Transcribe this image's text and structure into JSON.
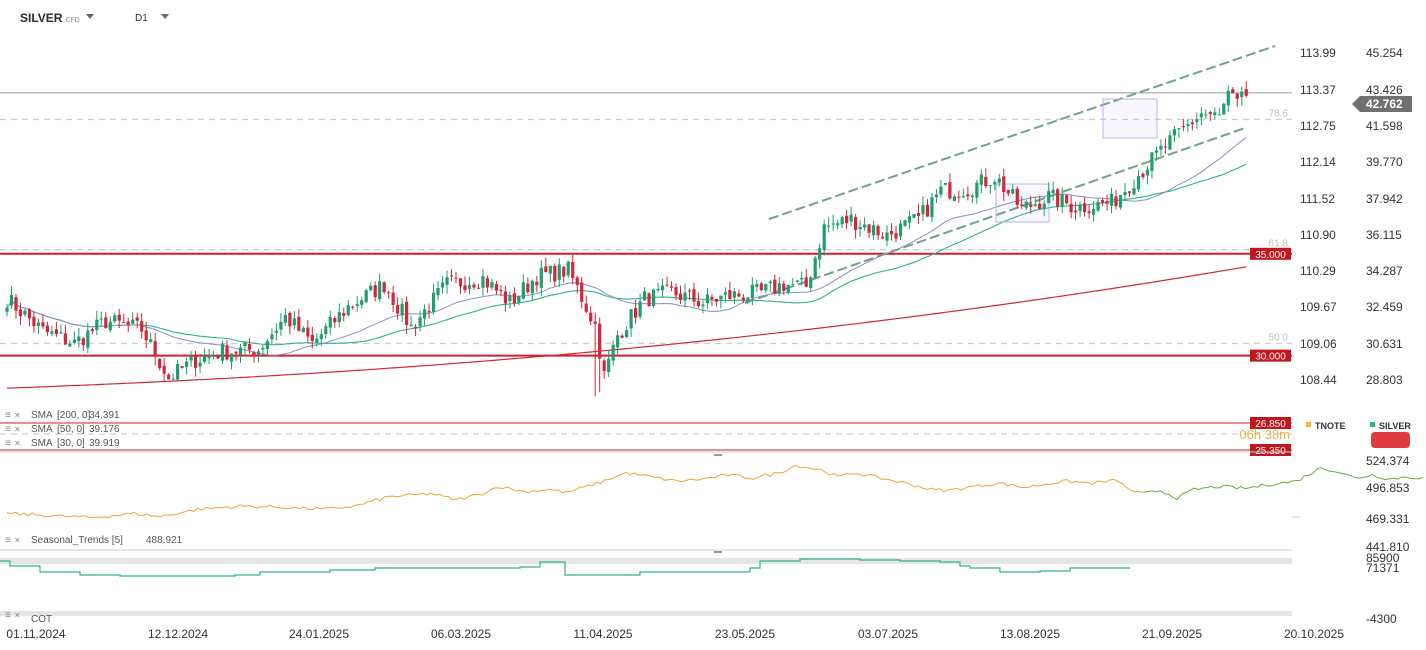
{
  "header": {
    "symbol": "SILVER",
    "symbol_type": "CFD",
    "timeframe": "D1"
  },
  "colors": {
    "up": "#1f9e6e",
    "down": "#d0283a",
    "sma200": "#d0283a",
    "sma50": "#2db58a",
    "sma30": "#8a8fc8",
    "channel": "#6fa38c",
    "level": "#d11f2f",
    "seasonal_hist": "#f2a23c",
    "seasonal_proj": "#71a73c",
    "cot": "#2db58a",
    "tnote": "#f5b82e",
    "silver": "#2db58a",
    "badge": "#e0393e"
  },
  "chart_data": {
    "type": "candlestick",
    "x_ticks": [
      "01.11.2024",
      "12.12.2024",
      "24.01.2025",
      "06.03.2025",
      "11.04.2025",
      "23.05.2025",
      "03.07.2025",
      "13.08.2025",
      "21.09.2025",
      "20.10.2025"
    ],
    "right_axis_ticks": [
      "45.254",
      "43.426",
      "41.598",
      "39.770",
      "37.942",
      "36.115",
      "34.287",
      "32.459",
      "30.631",
      "28.803"
    ],
    "left_axis_ticks": [
      "113.99",
      "113.37",
      "112.75",
      "112.14",
      "111.52",
      "110.90",
      "110.29",
      "109.67",
      "109.06",
      "108.44"
    ],
    "last_price": "42.762",
    "price_range": [
      26.0,
      46.2
    ],
    "horizontal_levels": [
      {
        "label": "35.000",
        "value": 35.0
      },
      {
        "label": "30.000",
        "value": 30.0
      },
      {
        "label": "26.850",
        "value": 26.85
      },
      {
        "label": "25.350",
        "value": 25.35
      }
    ],
    "fib_levels": [
      {
        "label": "78.6",
        "value": 41.6
      },
      {
        "label": "61.8",
        "value": 35.2
      },
      {
        "label": "50.0",
        "value": 30.6
      }
    ],
    "countdown": "06h 38m",
    "close_anchors": [
      [
        0,
        32.8
      ],
      [
        8,
        31.2
      ],
      [
        15,
        30.6
      ],
      [
        22,
        31.7
      ],
      [
        30,
        31.3
      ],
      [
        36,
        28.9
      ],
      [
        42,
        29.8
      ],
      [
        48,
        30.2
      ],
      [
        56,
        30.3
      ],
      [
        62,
        31.9
      ],
      [
        68,
        30.6
      ],
      [
        76,
        32.4
      ],
      [
        84,
        33.5
      ],
      [
        90,
        31.4
      ],
      [
        98,
        33.5
      ],
      [
        106,
        33.8
      ],
      [
        112,
        32.6
      ],
      [
        118,
        33.9
      ],
      [
        125,
        34.2
      ],
      [
        131,
        31.5
      ],
      [
        133,
        29.0
      ],
      [
        136,
        31.0
      ],
      [
        142,
        32.8
      ],
      [
        148,
        33.1
      ],
      [
        155,
        32.6
      ],
      [
        160,
        32.9
      ],
      [
        168,
        33.1
      ],
      [
        173,
        33.5
      ],
      [
        178,
        33.4
      ],
      [
        182,
        36.3
      ],
      [
        188,
        36.7
      ],
      [
        196,
        35.9
      ],
      [
        203,
        36.7
      ],
      [
        208,
        38.1
      ],
      [
        214,
        38.2
      ],
      [
        220,
        38.8
      ],
      [
        226,
        37.2
      ],
      [
        232,
        37.8
      ],
      [
        238,
        37.3
      ],
      [
        246,
        37.5
      ],
      [
        252,
        38.9
      ],
      [
        258,
        40.3
      ],
      [
        262,
        41.1
      ],
      [
        266,
        41.9
      ],
      [
        270,
        41.7
      ],
      [
        272,
        42.8
      ],
      [
        274,
        42.3
      ],
      [
        276,
        42.76
      ]
    ],
    "indicators": [
      {
        "name": "SMA [200, 0]",
        "value": "34.391"
      },
      {
        "name": "SMA [50, 0]",
        "value": "39.176"
      },
      {
        "name": "SMA [30, 0]",
        "value": "39.919"
      }
    ],
    "legend": [
      "TNOTE",
      "SILVER"
    ],
    "seasonal": {
      "label": "Seasonal_Trends [5]",
      "value": "488.921",
      "ticks": [
        "524.374",
        "496.853",
        "469.331",
        "441.810"
      ],
      "range": [
        441.81,
        524.374
      ],
      "anchors": [
        [
          0,
          474
        ],
        [
          10,
          472
        ],
        [
          20,
          470
        ],
        [
          30,
          474
        ],
        [
          36,
          471
        ],
        [
          45,
          478
        ],
        [
          55,
          481
        ],
        [
          65,
          480
        ],
        [
          75,
          478
        ],
        [
          82,
          481
        ],
        [
          90,
          490
        ],
        [
          100,
          493
        ],
        [
          106,
          487
        ],
        [
          112,
          493
        ],
        [
          116,
          500
        ],
        [
          122,
          495
        ],
        [
          128,
          497
        ],
        [
          132,
          494
        ],
        [
          140,
          504
        ],
        [
          146,
          513
        ],
        [
          152,
          509
        ],
        [
          158,
          505
        ],
        [
          164,
          507
        ],
        [
          170,
          511
        ],
        [
          176,
          508
        ],
        [
          182,
          513
        ],
        [
          186,
          520
        ],
        [
          192,
          516
        ],
        [
          196,
          509
        ],
        [
          200,
          513
        ],
        [
          206,
          508
        ],
        [
          212,
          503
        ],
        [
          218,
          497
        ],
        [
          222,
          496
        ],
        [
          228,
          500
        ],
        [
          234,
          503
        ],
        [
          240,
          499
        ],
        [
          246,
          503
        ],
        [
          250,
          505
        ],
        [
          256,
          503
        ],
        [
          262,
          506
        ],
        [
          264,
          498
        ],
        [
          268,
          493
        ]
      ],
      "proj_anchors": [
        [
          268,
          493
        ],
        [
          272,
          496
        ],
        [
          276,
          489
        ],
        [
          280,
          497
        ],
        [
          286,
          500
        ],
        [
          292,
          498
        ],
        [
          298,
          502
        ],
        [
          304,
          505
        ],
        [
          310,
          518
        ],
        [
          314,
          514
        ],
        [
          318,
          508
        ],
        [
          322,
          511
        ],
        [
          326,
          507
        ],
        [
          330,
          509
        ],
        [
          334,
          508
        ]
      ]
    },
    "cot": {
      "label": "COT",
      "ticks": [
        "85900",
        "71371",
        "-4300"
      ],
      "range": [
        -4300,
        85900
      ]
    }
  }
}
